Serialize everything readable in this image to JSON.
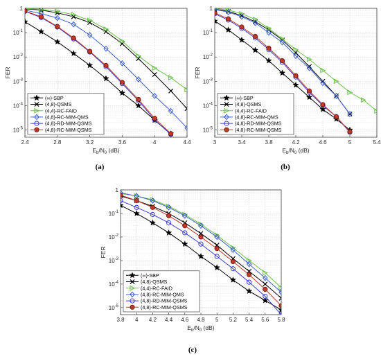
{
  "chart_data": [
    {
      "panel": "(a)",
      "type": "line",
      "xlabel": "E_b/N_0 (dB)",
      "ylabel": "FER",
      "xlim": [
        2.4,
        4.4
      ],
      "xticks": [
        "2.4",
        "2.8",
        "3.2",
        "3.6",
        "4",
        "4.4"
      ],
      "ylim_log10": [
        -5.3,
        0
      ],
      "yscale": "log",
      "grid": true,
      "legend_position": "bottom-left",
      "series": [
        {
          "name": "(∞)-SBP",
          "marker": "star",
          "color": "#000000",
          "x": [
            2.4,
            2.6,
            2.8,
            3.0,
            3.2,
            3.4,
            3.6,
            3.8,
            4.0,
            4.2
          ],
          "y": [
            0.28,
            0.11,
            0.042,
            0.014,
            0.0045,
            0.0013,
            0.00033,
            0.0001,
            2.5e-05,
            7e-06
          ]
        },
        {
          "name": "(4,8)-QSMS",
          "marker": "x",
          "color": "#000000",
          "x": [
            2.4,
            2.6,
            2.8,
            3.0,
            3.2,
            3.4,
            3.6,
            3.8,
            4.0,
            4.2,
            4.4
          ],
          "y": [
            0.95,
            0.85,
            0.65,
            0.45,
            0.26,
            0.11,
            0.035,
            0.0085,
            0.0019,
            0.0004,
            7.5e-05
          ]
        },
        {
          "name": "(4,4)-RC-FAID",
          "marker": "triangle-right",
          "color": "#6cc24a",
          "x": [
            2.4,
            2.6,
            2.8,
            3.0,
            3.2,
            3.4,
            3.6,
            3.8,
            4.0,
            4.2,
            4.4
          ],
          "y": [
            0.98,
            0.9,
            0.75,
            0.55,
            0.32,
            0.14,
            0.045,
            0.011,
            0.0035,
            0.0014,
            0.00045
          ]
        },
        {
          "name": "(4,8)-RC-MIM-QMS",
          "marker": "diamond",
          "color": "#3a5fcd",
          "x": [
            2.4,
            2.6,
            2.8,
            3.0,
            3.2,
            3.4,
            3.6,
            3.8,
            4.0,
            4.2,
            4.4
          ],
          "y": [
            0.85,
            0.6,
            0.4,
            0.22,
            0.08,
            0.022,
            0.0055,
            0.0012,
            0.00025,
            6e-05,
            1.2e-05
          ]
        },
        {
          "name": "(4,8)-RD-MIM-QSMS",
          "marker": "circle",
          "color": "#3a3ad0",
          "x": [
            2.4,
            2.6,
            2.8,
            3.0,
            3.2,
            3.4,
            3.6,
            3.8,
            4.0,
            4.2
          ],
          "y": [
            0.75,
            0.42,
            0.17,
            0.055,
            0.016,
            0.004,
            0.0008,
            0.00016,
            2.6e-05,
            6.5e-06
          ]
        },
        {
          "name": "(4,8)-RC-MIM-QSMS",
          "marker": "filled-circle",
          "color": "#c0392b",
          "x": [
            2.4,
            2.6,
            2.8,
            3.0,
            3.2,
            3.4,
            3.6,
            3.8,
            4.0,
            4.2
          ],
          "y": [
            0.78,
            0.45,
            0.18,
            0.06,
            0.017,
            0.0045,
            0.0009,
            0.00018,
            3e-05,
            7e-06
          ]
        }
      ]
    },
    {
      "panel": "(b)",
      "type": "line",
      "xlabel": "E_b/N_0 (dB)",
      "ylabel": "FER",
      "xlim": [
        3.0,
        5.4
      ],
      "xticks": [
        "3",
        "3.4",
        "3.8",
        "4.2",
        "4.6",
        "5",
        "5.4"
      ],
      "ylim_log10": [
        -5.3,
        0
      ],
      "yscale": "log",
      "grid": true,
      "legend_position": "bottom-left",
      "series": [
        {
          "name": "(∞)-SBP",
          "marker": "star",
          "color": "#000000",
          "x": [
            3.0,
            3.2,
            3.4,
            3.6,
            3.8,
            4.0,
            4.2,
            4.4,
            4.6,
            4.8,
            5.0
          ],
          "y": [
            0.3,
            0.13,
            0.05,
            0.019,
            0.007,
            0.0022,
            0.0007,
            0.00022,
            7e-05,
            2.8e-05,
            1e-05
          ]
        },
        {
          "name": "(4,8)-QSMS",
          "marker": "x",
          "color": "#000000",
          "x": [
            3.0,
            3.2,
            3.4,
            3.6,
            3.8,
            4.0,
            4.2,
            4.4,
            4.6,
            4.8,
            5.0
          ],
          "y": [
            0.92,
            0.75,
            0.5,
            0.28,
            0.13,
            0.05,
            0.015,
            0.004,
            0.001,
            0.00025,
            4.5e-05
          ]
        },
        {
          "name": "(4,4)-RC-FAID",
          "marker": "triangle-right",
          "color": "#6cc24a",
          "x": [
            3.0,
            3.2,
            3.4,
            3.6,
            3.8,
            4.0,
            4.2,
            4.4,
            4.6,
            4.8,
            5.0,
            5.2,
            5.4
          ],
          "y": [
            0.98,
            0.85,
            0.6,
            0.35,
            0.15,
            0.055,
            0.02,
            0.008,
            0.0028,
            0.001,
            0.00035,
            0.00017,
            6e-05
          ]
        },
        {
          "name": "(4,8)-RC-MIM-QMS",
          "marker": "diamond",
          "color": "#3a5fcd",
          "x": [
            3.0,
            3.2,
            3.4,
            3.6,
            3.8,
            4.0,
            4.2,
            4.4,
            4.6,
            4.8,
            5.0
          ],
          "y": [
            0.9,
            0.7,
            0.45,
            0.25,
            0.1,
            0.04,
            0.011,
            0.0035,
            0.00085,
            0.00025,
            4.5e-05
          ]
        },
        {
          "name": "(4,8)-RD-MIM-QSMS",
          "marker": "circle",
          "color": "#3a3ad0",
          "x": [
            3.0,
            3.2,
            3.4,
            3.6,
            3.8,
            4.0,
            4.2,
            4.4,
            4.6,
            4.8,
            5.0
          ],
          "y": [
            0.6,
            0.33,
            0.15,
            0.06,
            0.02,
            0.006,
            0.0015,
            0.00035,
            0.0001,
            3.5e-05,
            8e-06
          ]
        },
        {
          "name": "(4,8)-RC-MIM-QSMS",
          "marker": "filled-circle",
          "color": "#c0392b",
          "x": [
            3.0,
            3.2,
            3.4,
            3.6,
            3.8,
            4.0,
            4.2,
            4.4,
            4.6,
            4.8,
            5.0
          ],
          "y": [
            0.65,
            0.37,
            0.17,
            0.07,
            0.023,
            0.007,
            0.0017,
            0.0004,
            0.00011,
            3.5e-05,
            8.5e-06
          ]
        }
      ]
    },
    {
      "panel": "(c)",
      "type": "line",
      "xlabel": "E_b/N_0 (dB)",
      "ylabel": "FER",
      "xlim": [
        3.8,
        5.8
      ],
      "xticks": [
        "3.8",
        "4",
        "4.2",
        "4.4",
        "4.6",
        "4.8",
        "5",
        "5.2",
        "5.4",
        "5.6",
        "5.8"
      ],
      "ylim_log10": [
        -5.3,
        0
      ],
      "yscale": "log",
      "grid": true,
      "legend_position": "bottom-left",
      "series": [
        {
          "name": "(∞)-SBP",
          "marker": "star",
          "color": "#000000",
          "x": [
            3.8,
            4.0,
            4.2,
            4.4,
            4.6,
            4.8,
            5.0,
            5.2,
            5.4,
            5.6,
            5.8
          ],
          "y": [
            0.22,
            0.1,
            0.04,
            0.015,
            0.005,
            0.0015,
            0.0005,
            0.00015,
            5e-05,
            2e-05,
            8e-06
          ]
        },
        {
          "name": "(4,8)-QSMS",
          "marker": "x",
          "color": "#000000",
          "x": [
            3.8,
            4.0,
            4.2,
            4.4,
            4.6,
            4.8,
            5.0,
            5.2,
            5.4,
            5.6,
            5.8
          ],
          "y": [
            0.55,
            0.35,
            0.2,
            0.1,
            0.04,
            0.014,
            0.0045,
            0.0012,
            0.00035,
            0.0001,
            2.5e-05
          ]
        },
        {
          "name": "(4,4)-RC-FAID",
          "marker": "triangle-right",
          "color": "#6cc24a",
          "x": [
            3.8,
            4.0,
            4.2,
            4.4,
            4.6,
            4.8,
            5.0,
            5.2,
            5.4,
            5.6,
            5.8
          ],
          "y": [
            0.7,
            0.55,
            0.38,
            0.2,
            0.09,
            0.035,
            0.012,
            0.0035,
            0.001,
            0.0003,
            7e-05
          ]
        },
        {
          "name": "(4,8)-RC-MIM-QMS",
          "marker": "diamond",
          "color": "#3a5fcd",
          "x": [
            3.8,
            4.0,
            4.2,
            4.4,
            4.6,
            4.8,
            5.0,
            5.2,
            5.4,
            5.6,
            5.8
          ],
          "y": [
            0.75,
            0.55,
            0.35,
            0.18,
            0.08,
            0.03,
            0.01,
            0.0028,
            0.0007,
            0.00018,
            4.5e-05
          ]
        },
        {
          "name": "(4,8)-RD-MIM-QSMS",
          "marker": "circle",
          "color": "#3a3ad0",
          "x": [
            3.8,
            4.0,
            4.2,
            4.4,
            4.6,
            4.8,
            5.0,
            5.2,
            5.4,
            5.6,
            5.8
          ],
          "y": [
            0.35,
            0.18,
            0.09,
            0.04,
            0.015,
            0.005,
            0.0015,
            0.00045,
            0.00012,
            3e-05,
            5e-06
          ]
        },
        {
          "name": "(4,8)-RC-MIM-QSMS",
          "marker": "filled-circle",
          "color": "#c0392b",
          "x": [
            3.8,
            4.0,
            4.2,
            4.4,
            4.6,
            4.8,
            5.0,
            5.2,
            5.4,
            5.6,
            5.8
          ],
          "y": [
            0.6,
            0.35,
            0.18,
            0.08,
            0.03,
            0.01,
            0.0032,
            0.0009,
            0.00025,
            6e-05,
            1.2e-05
          ]
        }
      ]
    }
  ]
}
